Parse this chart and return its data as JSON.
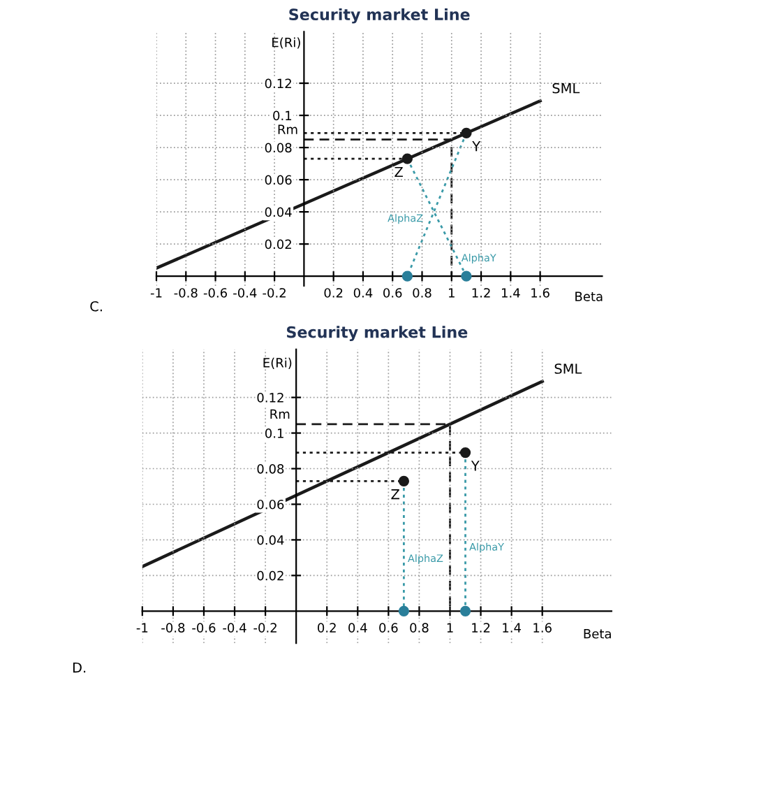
{
  "chart_data": [
    {
      "type": "line",
      "title": "Security market Line",
      "xlabel": "Beta",
      "ylabel": "E(Ri)",
      "xlim": [
        -1,
        2.02
      ],
      "ylim": [
        -0.006,
        0.152
      ],
      "xticks": [
        -1,
        -0.8,
        -0.6,
        -0.4,
        -0.2,
        0.2,
        0.4,
        0.6,
        0.8,
        1,
        1.2,
        1.4,
        1.6
      ],
      "yticks": [
        0.02,
        0.04,
        0.06,
        0.08,
        0.1,
        0.12
      ],
      "grid": true,
      "series": [
        {
          "name": "SML",
          "x": [
            -1,
            1.6
          ],
          "values": [
            0.005,
            0.109
          ],
          "color": "#1a1a1a"
        },
        {
          "name": "Rm",
          "x": [
            0,
            1,
            1
          ],
          "values": [
            0.085,
            0.085,
            0
          ],
          "line_style": "dashed",
          "color": "#1a1a1a"
        },
        {
          "x": [
            0,
            1.1
          ],
          "values": [
            0.089,
            0.089
          ],
          "line_style": "dotted",
          "color": "#1a1a1a"
        },
        {
          "x": [
            0,
            0.7
          ],
          "values": [
            0.073,
            0.073
          ],
          "line_style": "dotted",
          "color": "#1a1a1a"
        },
        {
          "name": "AlphaZ",
          "x": [
            1.1,
            0.7
          ],
          "values": [
            0.089,
            0
          ],
          "line_style": "dotted",
          "color": "#3a9aa8"
        },
        {
          "name": "AlphaY",
          "x": [
            0.7,
            1.1
          ],
          "values": [
            0.073,
            0
          ],
          "line_style": "dotted",
          "color": "#3a9aa8"
        },
        {
          "type": "scatter",
          "marker": "circle",
          "x": [
            0.7,
            1.1
          ],
          "values": [
            0,
            0
          ],
          "color": "#2a7f9a"
        },
        {
          "name": "Z",
          "type": "scatter",
          "marker": "circle",
          "x": [
            0.7
          ],
          "values": [
            0.073
          ],
          "color": "#1a1a1a"
        },
        {
          "name": "Y",
          "type": "scatter",
          "marker": "circle",
          "x": [
            1.1
          ],
          "values": [
            0.089
          ],
          "color": "#1a1a1a"
        }
      ],
      "annotations": [
        "C."
      ]
    },
    {
      "type": "line",
      "title": "Security market Line",
      "xlabel": "Beta",
      "ylabel": "E(Ri)",
      "xlim": [
        -1,
        2.05
      ],
      "ylim": [
        -0.018,
        0.147
      ],
      "xticks": [
        -1,
        -0.8,
        -0.6,
        -0.4,
        -0.2,
        0.2,
        0.4,
        0.6,
        0.8,
        1,
        1.2,
        1.4,
        1.6
      ],
      "yticks": [
        0.02,
        0.04,
        0.06,
        0.08,
        0.1,
        0.12
      ],
      "grid": true,
      "series": [
        {
          "name": "SML",
          "x": [
            -1,
            1.6
          ],
          "values": [
            0.025,
            0.129
          ],
          "color": "#1a1a1a"
        },
        {
          "name": "Rm",
          "x": [
            0,
            1,
            1
          ],
          "values": [
            0.105,
            0.105,
            0
          ],
          "line_style": "dashed",
          "color": "#1a1a1a"
        },
        {
          "x": [
            0,
            1.1
          ],
          "values": [
            0.089,
            0.089
          ],
          "line_style": "dotted",
          "color": "#1a1a1a"
        },
        {
          "x": [
            0,
            0.7
          ],
          "values": [
            0.073,
            0.073
          ],
          "line_style": "dotted",
          "color": "#1a1a1a"
        },
        {
          "name": "AlphaZ",
          "x": [
            0.7,
            0.7
          ],
          "values": [
            0.073,
            0
          ],
          "line_style": "dotted",
          "color": "#3a9aa8"
        },
        {
          "name": "AlphaY",
          "x": [
            1.1,
            1.1
          ],
          "values": [
            0.089,
            0
          ],
          "line_style": "dotted",
          "color": "#3a9aa8"
        },
        {
          "type": "scatter",
          "marker": "circle",
          "x": [
            0.7,
            1.1
          ],
          "values": [
            0,
            0
          ],
          "color": "#2a7f9a"
        },
        {
          "name": "Z",
          "type": "scatter",
          "marker": "circle",
          "x": [
            0.7
          ],
          "values": [
            0.073
          ],
          "color": "#1a1a1a"
        },
        {
          "name": "Y",
          "type": "scatter",
          "marker": "circle",
          "x": [
            1.1
          ],
          "values": [
            0.089
          ],
          "color": "#1a1a1a"
        }
      ],
      "annotations": [
        "D."
      ]
    }
  ]
}
